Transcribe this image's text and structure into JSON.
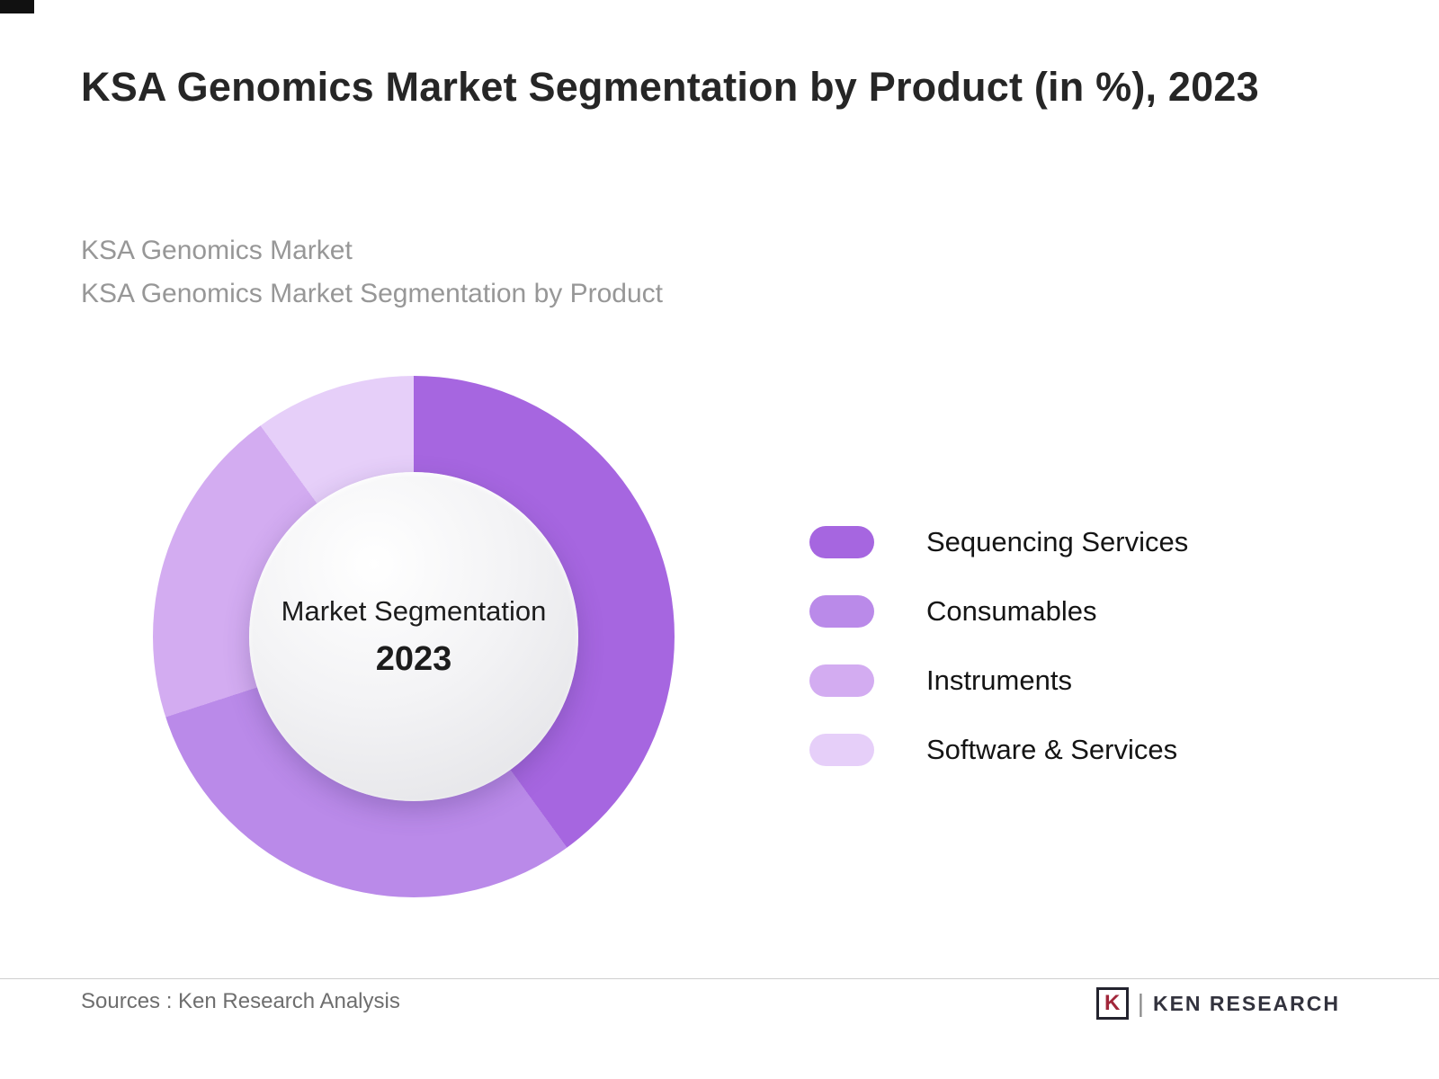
{
  "page": {
    "title": "KSA Genomics Market Segmentation by Product (in %), 2023",
    "subtitle_line1": "KSA Genomics Market",
    "subtitle_line2": "KSA Genomics Market Segmentation by Product",
    "source_text": "Sources : Ken Research Analysis",
    "brand": {
      "icon_letter": "K",
      "separator": "|",
      "name": "KEN RESEARCH"
    }
  },
  "chart_data": {
    "type": "pie",
    "variant": "donut",
    "title": "KSA Genomics Market Segmentation by Product (in %), 2023",
    "center_label": "Market Segmentation",
    "center_year": "2023",
    "categories": [
      "Sequencing Services",
      "Consumables",
      "Instruments",
      "Software & Services"
    ],
    "values": [
      40,
      30,
      20,
      10
    ],
    "unit": "%",
    "colors": [
      "#a666e0",
      "#ba8ae9",
      "#d3acf1",
      "#e6cff9"
    ],
    "legend_position": "right",
    "start_angle_deg": 0,
    "direction": "clockwise"
  }
}
